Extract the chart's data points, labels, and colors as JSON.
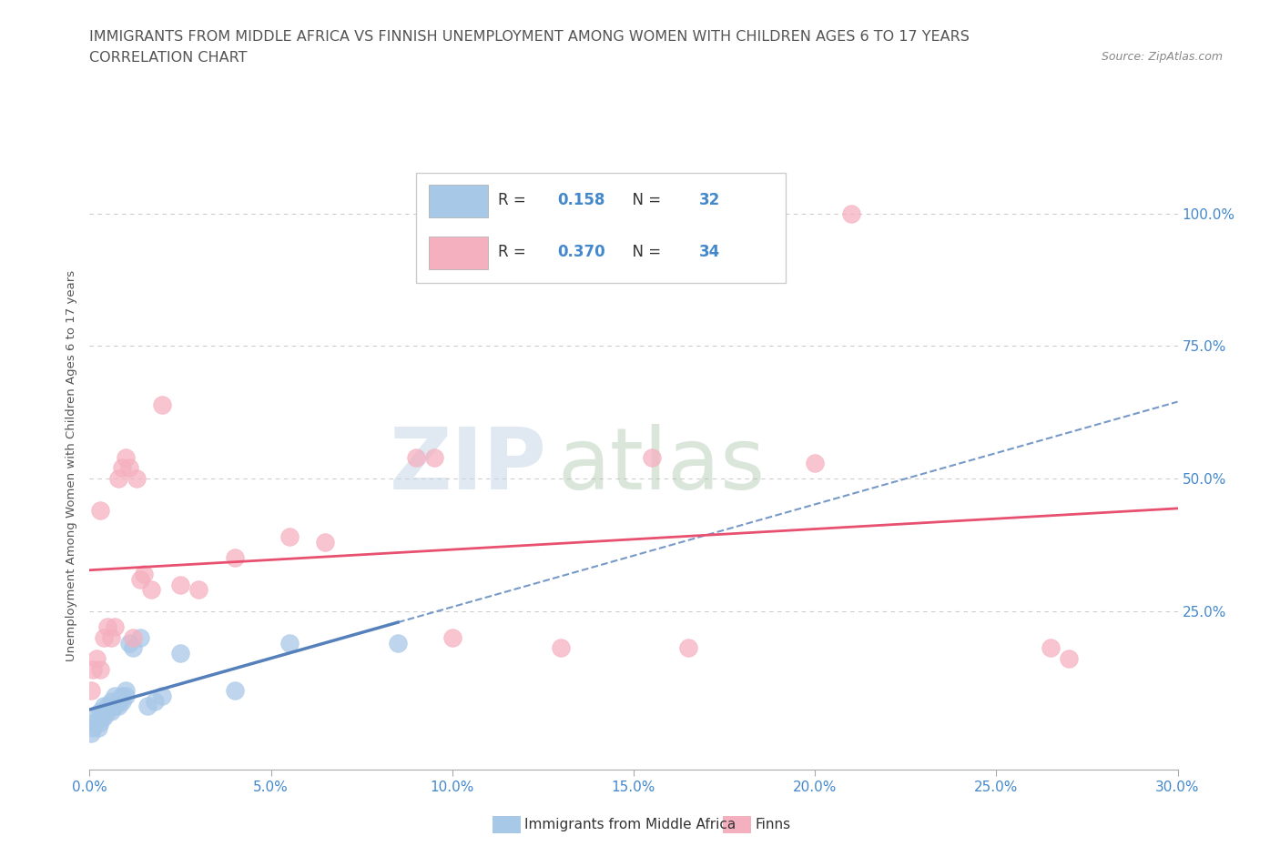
{
  "title_line1": "IMMIGRANTS FROM MIDDLE AFRICA VS FINNISH UNEMPLOYMENT AMONG WOMEN WITH CHILDREN AGES 6 TO 17 YEARS",
  "title_line2": "CORRELATION CHART",
  "source_text": "Source: ZipAtlas.com",
  "ylabel": "Unemployment Among Women with Children Ages 6 to 17 years",
  "legend_label1": "Immigrants from Middle Africa",
  "legend_label2": "Finns",
  "R1": 0.158,
  "N1": 32,
  "R2": 0.37,
  "N2": 34,
  "color1": "#a8c8e8",
  "color2": "#f5b0c0",
  "trendline1_color": "#5580bb",
  "trendline2_color": "#e85070",
  "grid_color": "#cccccc",
  "title_color": "#555555",
  "axis_label_color": "#4488cc",
  "text_color": "#333333",
  "background_color": "#ffffff",
  "xlim": [
    0.0,
    0.3
  ],
  "ylim": [
    -0.05,
    1.1
  ],
  "xtick_values": [
    0.0,
    0.05,
    0.1,
    0.15,
    0.2,
    0.25,
    0.3
  ],
  "xtick_labels": [
    "0.0%",
    "5.0%",
    "10.0%",
    "15.0%",
    "20.0%",
    "25.0%",
    "30.0%"
  ],
  "ytick_values": [
    0.25,
    0.5,
    0.75,
    1.0
  ],
  "ytick_labels": [
    "25.0%",
    "50.0%",
    "75.0%",
    "100.0%"
  ],
  "scatter1_x": [
    0.0005,
    0.001,
    0.0015,
    0.002,
    0.0025,
    0.003,
    0.003,
    0.0035,
    0.004,
    0.004,
    0.005,
    0.005,
    0.006,
    0.006,
    0.007,
    0.007,
    0.008,
    0.008,
    0.009,
    0.009,
    0.01,
    0.01,
    0.011,
    0.012,
    0.014,
    0.016,
    0.018,
    0.02,
    0.025,
    0.04,
    0.055,
    0.085
  ],
  "scatter1_y": [
    0.02,
    0.03,
    0.04,
    0.05,
    0.03,
    0.06,
    0.04,
    0.05,
    0.07,
    0.05,
    0.07,
    0.06,
    0.08,
    0.06,
    0.07,
    0.09,
    0.08,
    0.07,
    0.09,
    0.08,
    0.1,
    0.09,
    0.19,
    0.18,
    0.2,
    0.07,
    0.08,
    0.09,
    0.17,
    0.1,
    0.19,
    0.19
  ],
  "scatter2_x": [
    0.0005,
    0.001,
    0.002,
    0.003,
    0.003,
    0.004,
    0.005,
    0.006,
    0.007,
    0.008,
    0.009,
    0.01,
    0.011,
    0.012,
    0.013,
    0.014,
    0.015,
    0.017,
    0.02,
    0.025,
    0.03,
    0.04,
    0.055,
    0.065,
    0.09,
    0.095,
    0.1,
    0.13,
    0.155,
    0.165,
    0.2,
    0.21,
    0.265,
    0.27
  ],
  "scatter2_y": [
    0.1,
    0.14,
    0.16,
    0.14,
    0.44,
    0.2,
    0.22,
    0.2,
    0.22,
    0.5,
    0.52,
    0.54,
    0.52,
    0.2,
    0.5,
    0.31,
    0.32,
    0.29,
    0.64,
    0.3,
    0.29,
    0.35,
    0.39,
    0.38,
    0.54,
    0.54,
    0.2,
    0.18,
    0.54,
    0.18,
    0.53,
    1.0,
    0.18,
    0.16
  ],
  "watermark_zip": "ZIP",
  "watermark_atlas": "atlas",
  "figsize": [
    14.06,
    9.3
  ],
  "dpi": 100
}
